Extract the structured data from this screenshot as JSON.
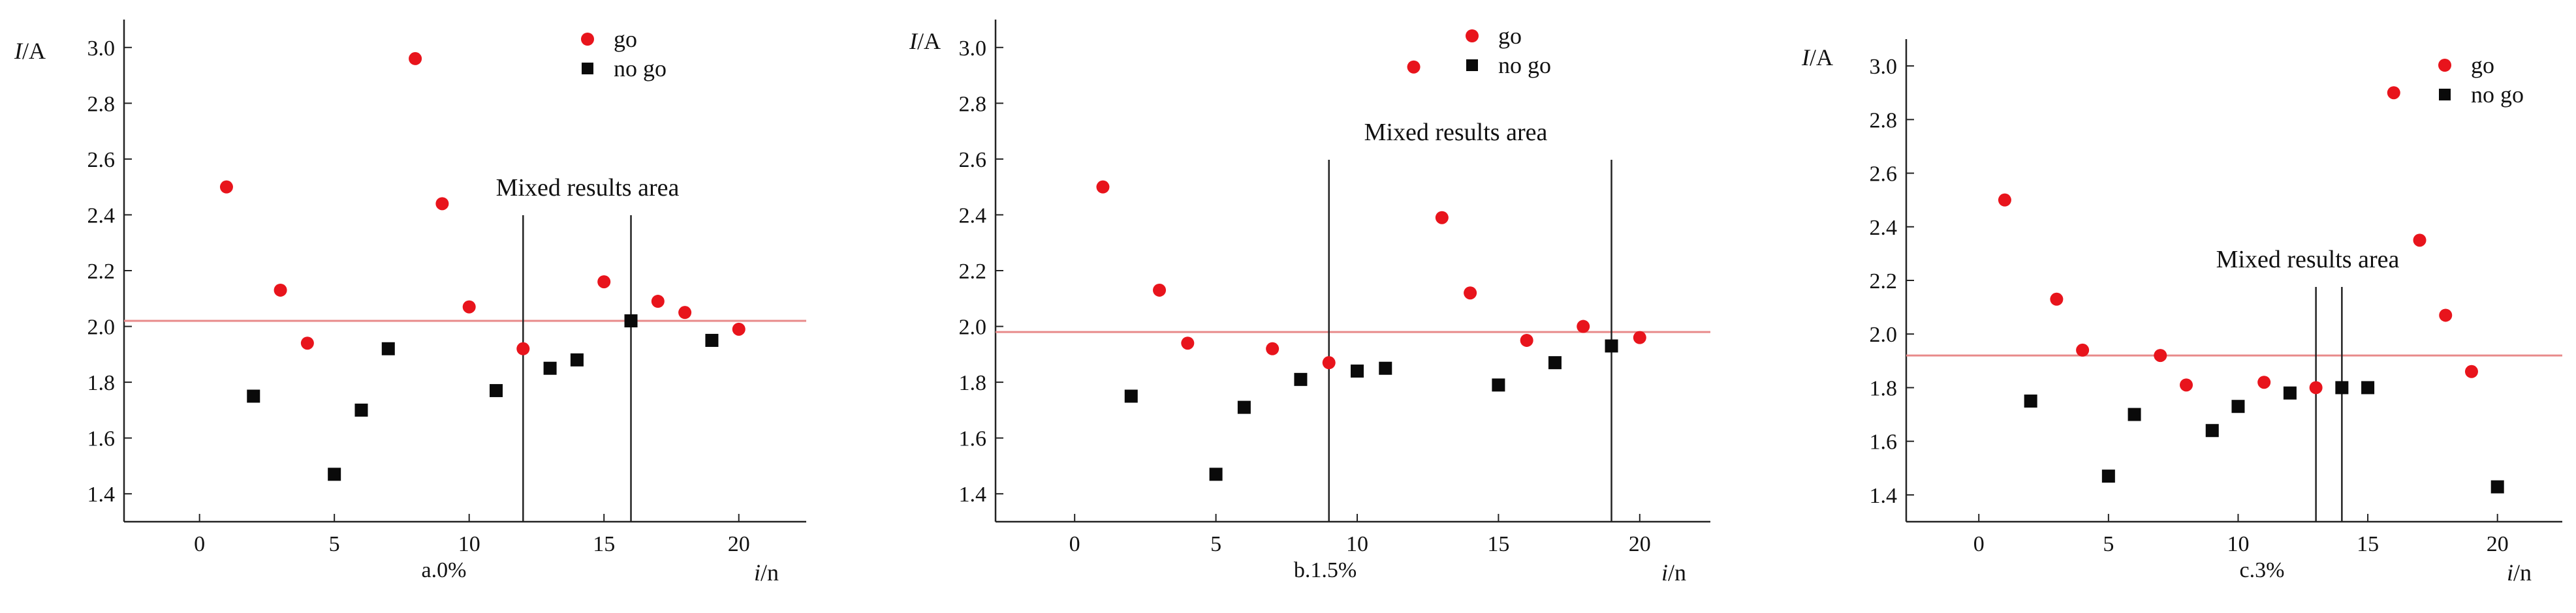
{
  "colors": {
    "go": "#e8141c",
    "no_go": "#0a0a0a",
    "threshold_line": "#e88a8a",
    "axis": "#222222",
    "region_line": "#222222"
  },
  "chart_data": [
    {
      "type": "scatter",
      "panel_label": "a.0%",
      "ylabel_italic": "I",
      "ylabel_unit": "/A",
      "xlabel_italic": "i",
      "xlabel_unit": "/n",
      "xlim": [
        -2.8,
        22.5
      ],
      "ylim": [
        1.3,
        3.1
      ],
      "xticks": [
        0,
        5,
        10,
        15,
        20
      ],
      "xtick_labels": [
        "0",
        "5",
        "10",
        "15",
        "20"
      ],
      "yticks": [
        1.4,
        1.6,
        1.8,
        2.0,
        2.2,
        2.4,
        2.6,
        2.8,
        3.0
      ],
      "ytick_labels": [
        "1.4",
        "1.6",
        "1.8",
        "2.0",
        "2.2",
        "2.4",
        "2.6",
        "2.8",
        "3.0"
      ],
      "threshold": 2.02,
      "region_bounds": [
        12,
        16
      ],
      "region_label": "Mixed results area",
      "legend": {
        "placement": "top-right",
        "entries": [
          "go",
          "no go"
        ]
      },
      "series": [
        {
          "name": "go",
          "x": [
            1,
            3,
            4,
            8,
            9,
            10,
            12,
            15,
            17,
            18,
            20
          ],
          "y": [
            2.5,
            2.13,
            1.94,
            2.96,
            2.44,
            2.07,
            1.92,
            2.16,
            2.09,
            2.05,
            1.99
          ]
        },
        {
          "name": "no go",
          "x": [
            2,
            5,
            6,
            7,
            11,
            13,
            14,
            16,
            19
          ],
          "y": [
            1.75,
            1.47,
            1.7,
            1.92,
            1.77,
            1.85,
            1.88,
            2.02,
            1.95
          ]
        }
      ]
    },
    {
      "type": "scatter",
      "panel_label": "b.1.5%",
      "ylabel_italic": "I",
      "ylabel_unit": "/A",
      "xlabel_italic": "i",
      "xlabel_unit": "/n",
      "xlim": [
        -2.8,
        22.5
      ],
      "ylim": [
        1.3,
        3.1
      ],
      "xticks": [
        0,
        5,
        10,
        15,
        20
      ],
      "xtick_labels": [
        "0",
        "5",
        "10",
        "15",
        "20"
      ],
      "yticks": [
        1.4,
        1.6,
        1.8,
        2.0,
        2.2,
        2.4,
        2.6,
        2.8,
        3.0
      ],
      "ytick_labels": [
        "1.4",
        "1.6",
        "1.8",
        "2.0",
        "2.2",
        "2.4",
        "2.6",
        "2.8",
        "3.0"
      ],
      "threshold": 1.98,
      "region_bounds": [
        9,
        19
      ],
      "region_label": "Mixed results area",
      "legend": {
        "placement": "top-right",
        "entries": [
          "go",
          "no go"
        ]
      },
      "series": [
        {
          "name": "go",
          "x": [
            1,
            3,
            4,
            7,
            9,
            12,
            13,
            14,
            16,
            18,
            20
          ],
          "y": [
            2.5,
            2.13,
            1.94,
            1.92,
            1.87,
            2.93,
            2.39,
            2.12,
            1.95,
            2.0,
            1.96
          ]
        },
        {
          "name": "no go",
          "x": [
            2,
            5,
            6,
            8,
            10,
            11,
            15,
            17,
            19
          ],
          "y": [
            1.75,
            1.47,
            1.71,
            1.81,
            1.84,
            1.85,
            1.79,
            1.87,
            1.93
          ]
        }
      ]
    },
    {
      "type": "scatter",
      "panel_label": "c.3%",
      "ylabel_italic": "I",
      "ylabel_unit": "/A",
      "xlabel_italic": "i",
      "xlabel_unit": "/n",
      "xlim": [
        -2.8,
        22.5
      ],
      "ylim": [
        1.3,
        3.1
      ],
      "xticks": [
        0,
        5,
        10,
        15,
        20
      ],
      "xtick_labels": [
        "0",
        "5",
        "10",
        "15",
        "20"
      ],
      "yticks": [
        1.4,
        1.6,
        1.8,
        2.0,
        2.2,
        2.4,
        2.6,
        2.8,
        3.0
      ],
      "ytick_labels": [
        "1.4",
        "1.6",
        "1.8",
        "2.0",
        "2.2",
        "2.4",
        "2.6",
        "2.8",
        "3.0"
      ],
      "threshold": 1.92,
      "region_bounds": [
        13,
        14
      ],
      "region_label": "Mixed results area",
      "legend": {
        "placement": "top-right",
        "entries": [
          "go",
          "no go"
        ]
      },
      "series": [
        {
          "name": "go",
          "x": [
            1,
            3,
            4,
            7,
            8,
            11,
            13,
            16,
            17,
            18,
            19
          ],
          "y": [
            2.5,
            2.13,
            1.94,
            1.92,
            1.81,
            1.82,
            1.8,
            2.9,
            2.35,
            2.07,
            1.86
          ]
        },
        {
          "name": "no go",
          "x": [
            2,
            5,
            6,
            9,
            10,
            12,
            14,
            15,
            20
          ],
          "y": [
            1.75,
            1.47,
            1.7,
            1.64,
            1.73,
            1.78,
            1.8,
            1.8,
            1.43
          ]
        }
      ]
    }
  ]
}
